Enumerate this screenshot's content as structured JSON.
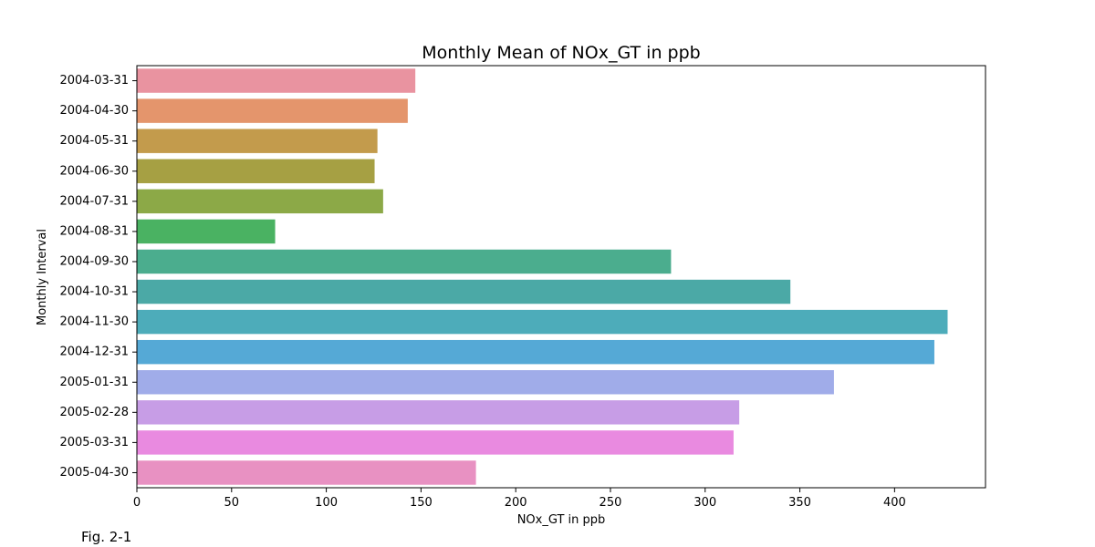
{
  "chart_data": {
    "type": "bar",
    "orientation": "horizontal",
    "title": "Monthly Mean of NOx_GT in ppb",
    "xlabel": "NOx_GT in ppb",
    "ylabel": "Monthly Interval",
    "xlim": [
      0,
      448
    ],
    "xticks": [
      0,
      50,
      100,
      150,
      200,
      250,
      300,
      350,
      400
    ],
    "grid": false,
    "categories": [
      "2004-03-31",
      "2004-04-30",
      "2004-05-31",
      "2004-06-30",
      "2004-07-31",
      "2004-08-31",
      "2004-09-30",
      "2004-10-31",
      "2004-11-30",
      "2004-12-31",
      "2005-01-31",
      "2005-02-28",
      "2005-03-31",
      "2005-04-30"
    ],
    "values": [
      147,
      143,
      127,
      125.5,
      130,
      73,
      282,
      345,
      428,
      421,
      368,
      318,
      315,
      179
    ],
    "colors": [
      "#e993a0",
      "#e4956c",
      "#c39b4c",
      "#a6a043",
      "#8ca947",
      "#4ab262",
      "#4bad8e",
      "#4ba9a6",
      "#4dacba",
      "#55a9d6",
      "#a0ace9",
      "#c79de6",
      "#e98ae0",
      "#e891c2"
    ]
  },
  "caption": "Fig. 2-1"
}
